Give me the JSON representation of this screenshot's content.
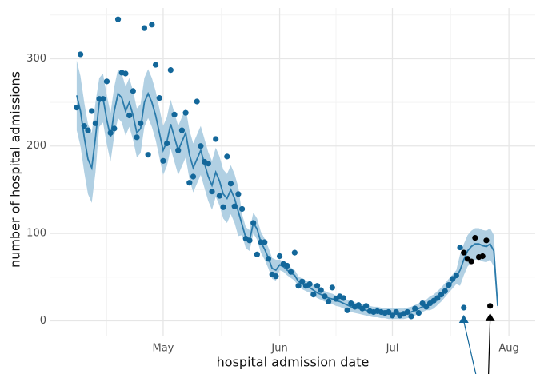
{
  "chart_data": {
    "type": "scatter",
    "xlabel": "hospital admission date",
    "ylabel": "number of hospital admissions",
    "xlim": [
      0,
      129
    ],
    "ylim": [
      -17,
      358
    ],
    "xticks": [
      {
        "value": 30,
        "label": "May"
      },
      {
        "value": 61,
        "label": "Jun"
      },
      {
        "value": 91,
        "label": "Jul"
      },
      {
        "value": 122,
        "label": "Aug"
      }
    ],
    "yticks": [
      0,
      100,
      200,
      300
    ],
    "minor_xticks": [
      15,
      45.5,
      76,
      106.5
    ],
    "minor_yticks": [
      50,
      150,
      250,
      350
    ],
    "grid": true,
    "points": {
      "color": "#13679a",
      "x": [
        7,
        8,
        9,
        10,
        11,
        12,
        13,
        14,
        15,
        16,
        17,
        18,
        19,
        20,
        21,
        22,
        23,
        24,
        25,
        26,
        27,
        28,
        29,
        30,
        31,
        32,
        33,
        34,
        35,
        36,
        37,
        38,
        39,
        40,
        41,
        42,
        43,
        44,
        45,
        46,
        47,
        48,
        49,
        50,
        51,
        52,
        53,
        54,
        55,
        56,
        57,
        58,
        59,
        60,
        61,
        62,
        63,
        64,
        65,
        66,
        67,
        68,
        69,
        70,
        71,
        72,
        73,
        74,
        75,
        76,
        77,
        78,
        79,
        80,
        81,
        82,
        83,
        84,
        85,
        86,
        87,
        88,
        89,
        90,
        91,
        92,
        93,
        94,
        95,
        96,
        97,
        98,
        99,
        100,
        101,
        102,
        103,
        104,
        105,
        106,
        107,
        108,
        109
      ],
      "values": [
        244,
        305,
        223,
        218,
        240,
        226,
        254,
        254,
        274,
        215,
        220,
        345,
        284,
        283,
        235,
        263,
        210,
        226,
        335,
        190,
        339,
        293,
        255,
        183,
        203,
        287,
        236,
        195,
        218,
        238,
        158,
        165,
        251,
        200,
        182,
        180,
        148,
        208,
        143,
        130,
        188,
        157,
        131,
        145,
        128,
        94,
        92,
        112,
        76,
        90,
        90,
        71,
        53,
        51,
        74,
        65,
        63,
        56,
        78,
        40,
        45,
        40,
        42,
        30,
        40,
        35,
        28,
        22,
        38,
        25,
        28,
        26,
        12,
        20,
        16,
        18,
        14,
        17,
        11,
        10,
        11,
        10,
        9,
        10,
        6,
        10,
        6,
        8,
        10,
        5,
        14,
        9,
        20,
        16,
        20,
        23,
        26,
        30,
        34,
        41,
        48,
        52,
        84
      ]
    },
    "highlight_points": {
      "color": "#000000",
      "x": [
        110,
        111,
        112,
        113,
        114,
        115,
        116
      ],
      "values": [
        78,
        71,
        68,
        95,
        73,
        74,
        92
      ]
    },
    "fit": {
      "color": "#2b7bab",
      "band_color": "#a8cbe0",
      "x": [
        7,
        8,
        9,
        10,
        11,
        12,
        13,
        14,
        15,
        16,
        17,
        18,
        19,
        20,
        21,
        22,
        23,
        24,
        25,
        26,
        27,
        28,
        29,
        30,
        31,
        32,
        33,
        34,
        35,
        36,
        37,
        38,
        39,
        40,
        41,
        42,
        43,
        44,
        45,
        46,
        47,
        48,
        49,
        50,
        51,
        52,
        53,
        54,
        55,
        56,
        57,
        58,
        59,
        60,
        61,
        62,
        63,
        64,
        65,
        66,
        67,
        68,
        69,
        70,
        71,
        72,
        73,
        74,
        75,
        76,
        77,
        78,
        79,
        80,
        81,
        82,
        83,
        84,
        85,
        86,
        87,
        88,
        89,
        90,
        91,
        92,
        93,
        94,
        95,
        96,
        97,
        98,
        99,
        100,
        101,
        102,
        103,
        104,
        105,
        106,
        107,
        108,
        109,
        110,
        111,
        112,
        113,
        114,
        115,
        116,
        117,
        118,
        119
      ],
      "values": [
        258,
        240,
        210,
        185,
        175,
        210,
        250,
        255,
        230,
        210,
        240,
        260,
        255,
        240,
        250,
        235,
        215,
        220,
        250,
        260,
        250,
        235,
        215,
        195,
        205,
        225,
        210,
        195,
        205,
        215,
        190,
        175,
        185,
        195,
        180,
        165,
        155,
        170,
        160,
        145,
        140,
        150,
        140,
        125,
        110,
        95,
        92,
        112,
        105,
        90,
        82,
        72,
        60,
        58,
        64,
        62,
        58,
        55,
        52,
        45,
        42,
        40,
        38,
        35,
        32,
        30,
        28,
        26,
        25,
        23,
        22,
        20,
        18,
        16,
        15,
        14,
        13,
        12,
        11,
        10,
        10,
        9,
        9,
        8,
        8,
        8,
        8,
        8,
        9,
        10,
        12,
        14,
        16,
        18,
        20,
        22,
        26,
        30,
        35,
        40,
        45,
        50,
        58,
        70,
        80,
        85,
        88,
        88,
        86,
        85,
        88,
        80,
        17
      ],
      "upper": [
        298,
        280,
        250,
        225,
        215,
        250,
        278,
        283,
        258,
        238,
        268,
        288,
        283,
        268,
        278,
        263,
        243,
        248,
        278,
        288,
        278,
        263,
        243,
        223,
        233,
        253,
        238,
        223,
        233,
        243,
        218,
        203,
        213,
        223,
        208,
        193,
        183,
        198,
        188,
        173,
        168,
        178,
        168,
        153,
        122,
        107,
        104,
        124,
        117,
        102,
        94,
        84,
        72,
        70,
        70,
        68,
        64,
        61,
        58,
        51,
        48,
        46,
        44,
        41,
        38,
        36,
        34,
        32,
        31,
        29,
        28,
        26,
        24,
        22,
        21,
        20,
        19,
        18,
        17,
        16,
        16,
        15,
        15,
        14,
        14,
        14,
        14,
        14,
        15,
        16,
        18,
        20,
        22,
        24,
        28,
        30,
        34,
        38,
        43,
        48,
        53,
        58,
        76,
        88,
        98,
        103,
        106,
        106,
        104,
        103,
        106,
        98,
        21
      ],
      "lower": [
        218,
        200,
        170,
        145,
        135,
        170,
        222,
        227,
        202,
        182,
        212,
        232,
        227,
        212,
        222,
        207,
        187,
        192,
        222,
        232,
        222,
        207,
        187,
        167,
        177,
        197,
        182,
        167,
        177,
        187,
        162,
        147,
        157,
        167,
        152,
        137,
        127,
        142,
        132,
        117,
        112,
        122,
        112,
        97,
        98,
        83,
        80,
        100,
        93,
        78,
        70,
        60,
        48,
        46,
        58,
        56,
        52,
        49,
        46,
        39,
        36,
        34,
        32,
        29,
        26,
        24,
        22,
        20,
        19,
        17,
        16,
        14,
        12,
        10,
        9,
        8,
        7,
        6,
        5,
        4,
        4,
        3,
        3,
        2,
        2,
        2,
        2,
        2,
        3,
        4,
        6,
        8,
        10,
        12,
        12,
        14,
        18,
        22,
        27,
        32,
        37,
        42,
        40,
        52,
        62,
        67,
        70,
        70,
        68,
        67,
        70,
        62,
        13
      ]
    },
    "markers": [
      {
        "x": 110,
        "value": 15,
        "color": "#13679a"
      },
      {
        "x": 117,
        "value": 17,
        "color": "#000000"
      }
    ]
  }
}
